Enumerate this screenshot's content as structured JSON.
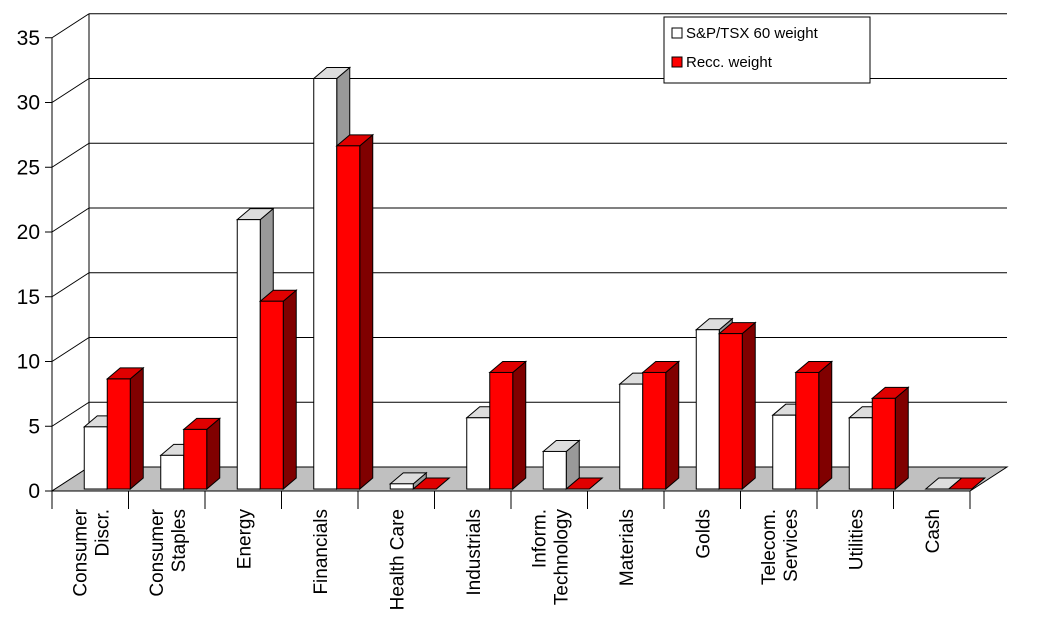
{
  "chart_data": {
    "type": "bar",
    "title": "",
    "xlabel": "",
    "ylabel": "",
    "ylim": [
      0,
      35
    ],
    "yticks": [
      0,
      5,
      10,
      15,
      20,
      25,
      30,
      35
    ],
    "grid": true,
    "legend_position": "top-right",
    "categories": [
      [
        "Consumer",
        "Discr."
      ],
      [
        "Consumer",
        "Staples"
      ],
      [
        "Energy"
      ],
      [
        "Financials"
      ],
      [
        "Health Care"
      ],
      [
        "Industrials"
      ],
      [
        "Inform.",
        "Technology"
      ],
      [
        "Materials"
      ],
      [
        "Golds"
      ],
      [
        "Telecom.",
        "Services"
      ],
      [
        "Utilities"
      ],
      [
        "Cash"
      ]
    ],
    "series": [
      {
        "name": "S&P/TSX 60 weight",
        "values": [
          4.8,
          2.6,
          20.8,
          31.7,
          0.4,
          5.5,
          2.9,
          8.1,
          12.3,
          5.7,
          5.5,
          0
        ],
        "face_color": "#ffffff",
        "top_color": "#dddddd",
        "side_color": "#999999"
      },
      {
        "name": "Recc. weight",
        "values": [
          8.5,
          4.6,
          14.5,
          26.5,
          0,
          9.0,
          0,
          9.0,
          12.0,
          9.0,
          7.0,
          0
        ],
        "face_color": "#ff0000",
        "top_color": "#e00000",
        "side_color": "#800000"
      }
    ]
  }
}
